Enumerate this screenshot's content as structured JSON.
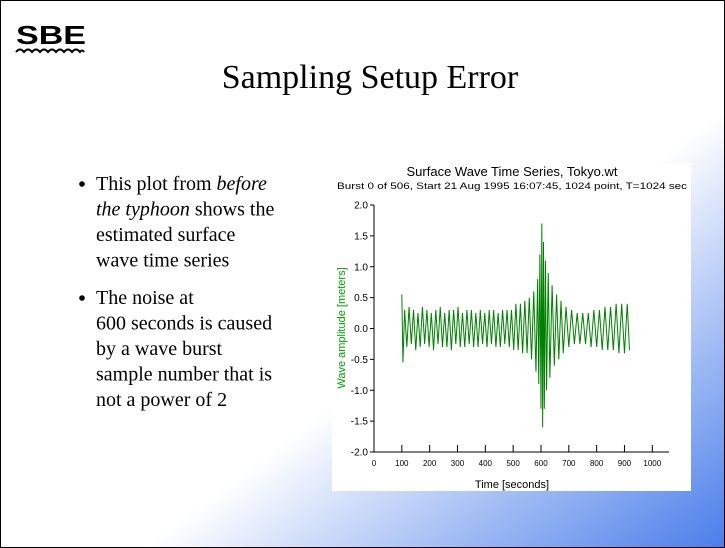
{
  "logo": "SBE",
  "slide_title": "Sampling Setup Error",
  "bullets": [
    [
      [
        {
          "text": "This plot from ",
          "italic": false
        },
        {
          "text": "before",
          "italic": true
        }
      ],
      [
        {
          "text": "the typhoon",
          "italic": true
        },
        {
          "text": " shows the",
          "italic": false
        }
      ],
      [
        {
          "text": "estimated surface",
          "italic": false
        }
      ],
      [
        {
          "text": "wave time series",
          "italic": false
        }
      ]
    ],
    [
      [
        {
          "text": "The noise at",
          "italic": false
        }
      ],
      [
        {
          "text": "600 seconds is caused",
          "italic": false
        }
      ],
      [
        {
          "text": "by a wave burst",
          "italic": false
        }
      ],
      [
        {
          "text": "sample number that is",
          "italic": false
        }
      ],
      [
        {
          "text": "not a power of 2",
          "italic": false
        }
      ]
    ]
  ],
  "chart_data": {
    "type": "line",
    "title": "Surface Wave Time Series, Tokyo.wt",
    "subtitle": "Burst 0 of 506, Start 21 Aug 1995 16:07:45, 1024 point, T=1024 sec",
    "xlabel": "Time [seconds]",
    "ylabel": "Wave amplitude [meters]",
    "x": [
      100,
      104,
      110,
      118,
      126,
      134,
      142,
      150,
      158,
      166,
      174,
      182,
      190,
      198,
      206,
      214,
      222,
      230,
      238,
      246,
      254,
      262,
      270,
      278,
      286,
      294,
      302,
      310,
      318,
      326,
      334,
      342,
      350,
      358,
      366,
      374,
      382,
      390,
      398,
      406,
      414,
      422,
      430,
      438,
      446,
      454,
      462,
      470,
      478,
      486,
      494,
      502,
      510,
      518,
      526,
      534,
      542,
      550,
      558,
      566,
      574,
      582,
      588,
      592,
      596,
      600,
      603,
      606,
      609,
      612,
      616,
      620,
      626,
      632,
      640,
      648,
      656,
      664,
      672,
      680,
      690,
      700,
      710,
      720,
      730,
      740,
      750,
      760,
      770,
      780,
      790,
      800,
      810,
      820,
      830,
      840,
      850,
      860,
      870,
      880,
      890,
      900,
      910,
      918
    ],
    "series": [
      {
        "name": "amplitude",
        "color": "#008000",
        "values": [
          0.55,
          -0.55,
          0.3,
          -0.3,
          0.35,
          -0.25,
          0.3,
          -0.35,
          0.25,
          -0.3,
          0.35,
          -0.25,
          0.3,
          -0.3,
          0.25,
          -0.35,
          0.3,
          -0.25,
          0.35,
          -0.3,
          0.25,
          -0.3,
          0.3,
          -0.35,
          0.3,
          -0.25,
          0.35,
          -0.3,
          0.25,
          -0.3,
          0.3,
          -0.25,
          0.3,
          -0.3,
          0.25,
          -0.3,
          0.3,
          -0.25,
          0.25,
          -0.3,
          0.3,
          -0.25,
          0.3,
          -0.3,
          0.25,
          -0.3,
          0.3,
          -0.25,
          0.3,
          -0.3,
          0.3,
          -0.35,
          0.4,
          -0.35,
          0.4,
          -0.4,
          0.45,
          -0.4,
          0.5,
          -0.5,
          0.6,
          -0.7,
          0.8,
          -0.9,
          1.2,
          -1.3,
          1.7,
          -1.6,
          1.4,
          -1.3,
          1.1,
          -1.0,
          0.9,
          -0.8,
          0.7,
          -0.6,
          0.55,
          -0.5,
          0.45,
          -0.4,
          0.35,
          -0.3,
          0.3,
          -0.25,
          0.25,
          -0.25,
          0.25,
          -0.25,
          0.25,
          -0.3,
          0.3,
          -0.3,
          0.3,
          -0.35,
          0.35,
          -0.35,
          0.35,
          -0.35,
          0.4,
          -0.4,
          0.4,
          -0.4,
          0.4,
          -0.35
        ]
      }
    ],
    "xlim": [
      0,
      1060
    ],
    "ylim": [
      -2,
      2
    ],
    "xticks": [
      0,
      100,
      200,
      300,
      400,
      500,
      600,
      700,
      800,
      900,
      1000
    ],
    "yticks": [
      {
        "value": 2,
        "label": "2.0"
      },
      {
        "value": 1.5,
        "label": "1.5"
      },
      {
        "value": 1,
        "label": "1.0"
      },
      {
        "value": 0.5,
        "label": "0.5"
      },
      {
        "value": 0,
        "label": "0.0"
      },
      {
        "value": -0.5,
        "label": "-0.5"
      },
      {
        "value": -1,
        "label": "-1.0"
      },
      {
        "value": -1.5,
        "label": "-1.5"
      },
      {
        "value": -2,
        "label": "-2.0"
      }
    ],
    "grid": false
  }
}
